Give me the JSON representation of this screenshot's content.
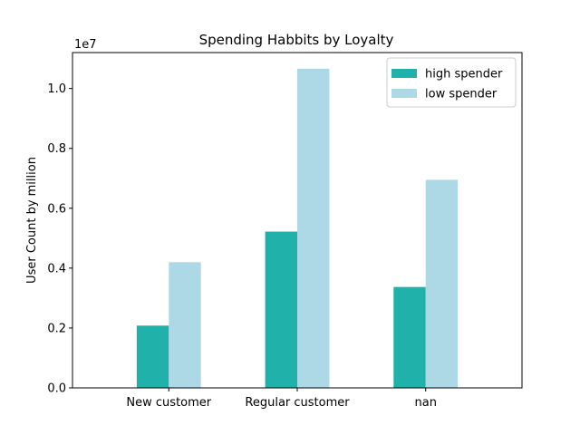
{
  "chart_data": {
    "type": "bar",
    "title": "Spending Habbits by Loyalty",
    "xlabel": "",
    "ylabel": "User Count by million",
    "y_offset_label": "1e7",
    "y_scale": 10000000,
    "categories": [
      "New customer",
      "Regular customer",
      "nan"
    ],
    "series": [
      {
        "name": "high spender",
        "color": "#20b2aa",
        "values": [
          2080000,
          5220000,
          3370000
        ]
      },
      {
        "name": "low spender",
        "color": "#add8e6",
        "values": [
          4200000,
          10660000,
          6950000
        ]
      }
    ],
    "ylim": [
      0,
      11200000
    ],
    "yticks": [
      0,
      2000000,
      4000000,
      6000000,
      8000000,
      10000000
    ],
    "ytick_labels": [
      "0.0",
      "0.2",
      "0.4",
      "0.6",
      "0.8",
      "1.0"
    ],
    "legend_position": "top-right",
    "grid": false
  }
}
